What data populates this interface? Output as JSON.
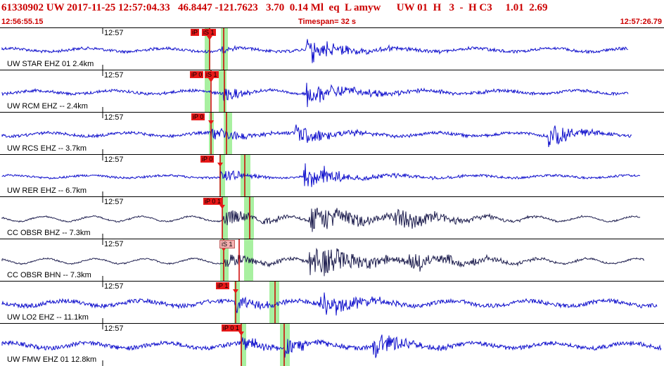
{
  "header": {
    "title": "61330902 UW 2017-11-25 12:57:04.33   46.8447 -121.7623   3.70  0.14 Ml  eq  L amyw      UW 01  H   3  -  H C3     1.01  2.69",
    "start_time": "12:56:55.15",
    "timespan": "Timespan=  32 s",
    "end_time": "12:57:26.79"
  },
  "colors": {
    "title": "#cc0000",
    "trace_blue": "#1010cc",
    "trace_dark": "#202050",
    "pick_red": "#e81818",
    "window_green": "#a8f0a0",
    "pick_line": "#cc0000"
  },
  "panels": [
    {
      "label": "UW STAR EHZ 01 2.4km",
      "time": "12:57",
      "color": "blue",
      "amp": 4,
      "noise": 2,
      "end": 893,
      "p": 298,
      "s": 318,
      "picks": [
        {
          "text": "iP",
          "x": 271
        },
        {
          "text": "iS 1",
          "x": 287
        }
      ],
      "green": [
        [
          291,
          299
        ],
        [
          314,
          324
        ]
      ],
      "bursts": [
        {
          "t": 315,
          "a": 4,
          "d": 20
        },
        {
          "t": 436,
          "a": 22,
          "d": 18
        },
        {
          "t": 440,
          "a": 10,
          "d": 80
        }
      ]
    },
    {
      "label": "UW RCM EHZ -- 2.4km",
      "time": "12:57",
      "color": "blue",
      "amp": 4,
      "noise": 2,
      "end": 893,
      "p": 300,
      "s": 319,
      "picks": [
        {
          "text": "iP 0",
          "x": 270
        },
        {
          "text": "iS 1",
          "x": 291
        }
      ],
      "green": [
        [
          291,
          299
        ],
        [
          311,
          322
        ]
      ],
      "bursts": [
        {
          "t": 318,
          "a": 10,
          "d": 30
        },
        {
          "t": 436,
          "a": 20,
          "d": 25
        },
        {
          "t": 445,
          "a": 8,
          "d": 110
        }
      ]
    },
    {
      "label": "UW RCS EHZ -- 3.7km",
      "time": "12:57",
      "color": "blue",
      "amp": 4,
      "noise": 2,
      "end": 898,
      "p": 300,
      "s": 322,
      "picks": [
        {
          "text": "iP 0",
          "x": 272
        }
      ],
      "green": [
        [
          297,
          304
        ],
        [
          318,
          330
        ]
      ],
      "bursts": [
        {
          "t": 300,
          "a": 12,
          "d": 40
        },
        {
          "t": 420,
          "a": 12,
          "d": 60
        },
        {
          "t": 780,
          "a": 24,
          "d": 30
        }
      ]
    },
    {
      "label": "UW RER EHZ -- 6.7km",
      "time": "12:57",
      "color": "blue",
      "amp": 3,
      "noise": 1.5,
      "end": 910,
      "p": 313,
      "s": 348,
      "picks": [
        {
          "text": "iP 0",
          "x": 285
        }
      ],
      "green": [
        [
          312,
          320
        ],
        [
          342,
          356
        ]
      ],
      "bursts": [
        {
          "t": 313,
          "a": 12,
          "d": 30
        },
        {
          "t": 432,
          "a": 22,
          "d": 30
        },
        {
          "t": 460,
          "a": 6,
          "d": 100
        }
      ]
    },
    {
      "label": "CC OBSR BHZ -- 7.3km",
      "time": "12:57",
      "color": "dark",
      "amp": 6,
      "noise": 1,
      "end": 910,
      "p": 316,
      "s": 355,
      "picks": [
        {
          "text": "iP 0 1",
          "x": 289
        }
      ],
      "green": [
        [
          316,
          324
        ],
        [
          347,
          361
        ]
      ],
      "bursts": [
        {
          "t": 318,
          "a": 12,
          "d": 60
        },
        {
          "t": 440,
          "a": 22,
          "d": 70
        },
        {
          "t": 560,
          "a": 14,
          "d": 80
        }
      ]
    },
    {
      "label": "CC OBSR BHN -- 7.3km",
      "time": "12:57",
      "color": "dark",
      "amp": 6,
      "noise": 1,
      "end": 916,
      "p": 318,
      "s": 340,
      "picks": [
        {
          "text": "iS 1",
          "x": 312,
          "light": true
        }
      ],
      "green": [
        [
          313,
          325
        ],
        [
          347,
          360
        ]
      ],
      "bursts": [
        {
          "t": 320,
          "a": 10,
          "d": 60
        },
        {
          "t": 440,
          "a": 24,
          "d": 80
        },
        {
          "t": 580,
          "a": 12,
          "d": 90
        }
      ]
    },
    {
      "label": "UW LO2 EHZ -- 11.1km",
      "time": "12:57",
      "color": "blue",
      "amp": 6,
      "noise": 3,
      "end": 934,
      "p": 335,
      "s": 391,
      "picks": [
        {
          "text": "iP 1",
          "x": 307
        }
      ],
      "green": [
        [
          333,
          341
        ],
        [
          383,
          397
        ]
      ],
      "bursts": [
        {
          "t": 336,
          "a": 14,
          "d": 30
        },
        {
          "t": 455,
          "a": 20,
          "d": 50
        }
      ]
    },
    {
      "label": "UW FMW EHZ 01 12.8km",
      "time": "12:57",
      "color": "blue",
      "amp": 6,
      "noise": 3,
      "end": 940,
      "p": 343,
      "s": 404,
      "picks": [
        {
          "text": "iP 0 1",
          "x": 315
        }
      ],
      "green": [
        [
          342,
          350
        ],
        [
          398,
          412
        ]
      ],
      "bursts": [
        {
          "t": 345,
          "a": 12,
          "d": 30
        },
        {
          "t": 405,
          "a": 14,
          "d": 30
        },
        {
          "t": 530,
          "a": 20,
          "d": 40
        }
      ]
    }
  ]
}
